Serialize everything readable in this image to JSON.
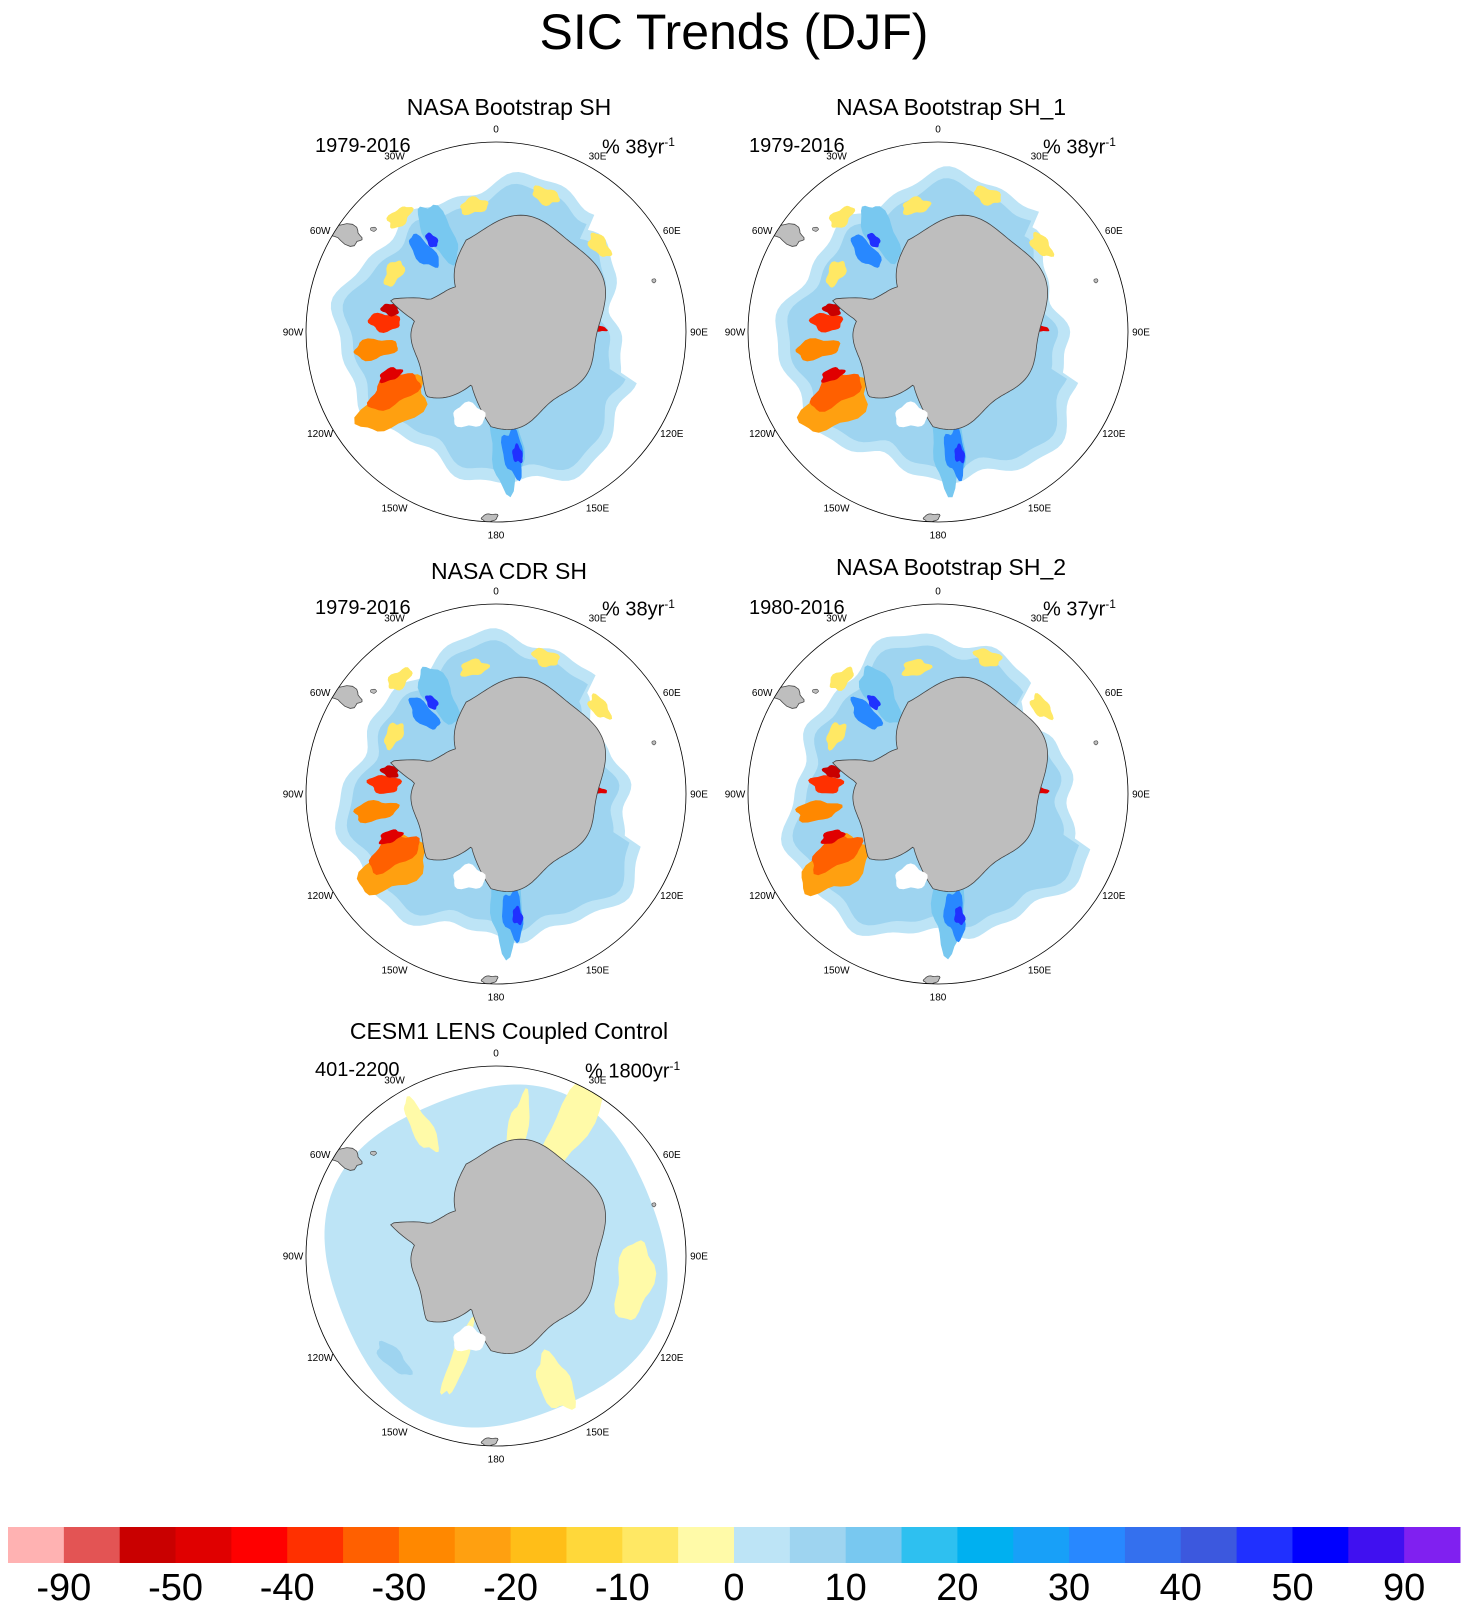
{
  "title": "SIC Trends (DJF)",
  "panels": [
    {
      "title": "NASA Bootstrap SH",
      "period": "1979-2016",
      "trend_prefix": "% 38yr",
      "trend_sup": "-1",
      "style": "obs",
      "variant": 0
    },
    {
      "title": "NASA Bootstrap SH_1",
      "period": "1979-2016",
      "trend_prefix": "% 38yr",
      "trend_sup": "-1",
      "style": "obs",
      "variant": 1
    },
    {
      "title": "NASA CDR SH",
      "period": "1979-2016",
      "trend_prefix": "% 38yr",
      "trend_sup": "-1",
      "style": "obs",
      "variant": 2
    },
    {
      "title": "NASA Bootstrap SH_2",
      "period": "1980-2016",
      "trend_prefix": "% 37yr",
      "trend_sup": "-1",
      "style": "obs",
      "variant": 3
    },
    {
      "title": "CESM1 LENS Coupled Control",
      "period": "401-2200",
      "trend_prefix": "% 1800yr",
      "trend_sup": "-1",
      "style": "model",
      "variant": 4
    }
  ],
  "longitude_labels": [
    "0",
    "30E",
    "60E",
    "90E",
    "120E",
    "150E",
    "180",
    "150W",
    "120W",
    "90W",
    "60W",
    "30W"
  ],
  "colorbar": {
    "colors": [
      "#ffb2b2",
      "#e35454",
      "#c90000",
      "#e00000",
      "#ff0000",
      "#ff3000",
      "#ff6000",
      "#ff8800",
      "#ffa010",
      "#ffbe18",
      "#ffd83a",
      "#ffe864",
      "#fffaa8",
      "#bde4f6",
      "#9ed4f0",
      "#78c8f0",
      "#2ec0f0",
      "#00b0f0",
      "#18a0f8",
      "#2888ff",
      "#3470ee",
      "#3c58de",
      "#2030ff",
      "#0000ff",
      "#4010f0",
      "#8020f0"
    ],
    "labels": [
      "-90",
      "-50",
      "-40",
      "-30",
      "-20",
      "-10",
      "0",
      "10",
      "20",
      "30",
      "40",
      "50",
      "90"
    ]
  },
  "colors": {
    "land": "#bebebe",
    "ring": "#000000"
  }
}
